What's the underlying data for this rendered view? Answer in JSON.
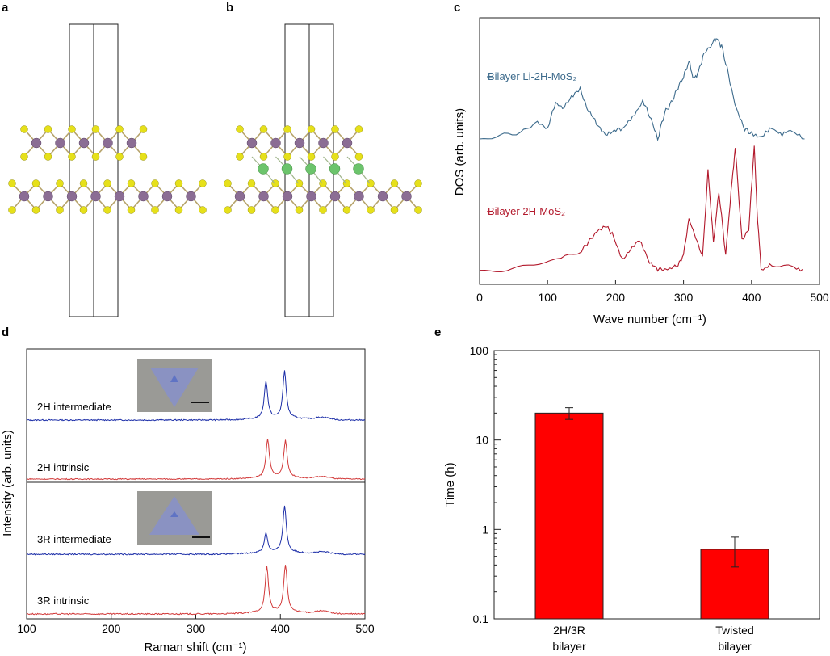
{
  "panel_labels": {
    "a": "a",
    "b": "b",
    "c": "c",
    "d": "d",
    "e": "e"
  },
  "colors": {
    "blue": "#3d6b8c",
    "dark_red": "#b2182b",
    "raman_blue": "#1c2ea8",
    "raman_red": "#d23a3a",
    "bar": "#ff0000",
    "mo_atom": "#8b6d94",
    "s_atom": "#e6e01a",
    "li_atom": "#6cc46c"
  },
  "chart_data": [
    {
      "panel": "c",
      "type": "line",
      "xlabel": "Wave number (cm⁻¹)",
      "ylabel": "DOS (arb. units)",
      "xlim": [
        0,
        500
      ],
      "xticks": [
        "0",
        "100",
        "200",
        "300",
        "400",
        "500"
      ],
      "series": [
        {
          "name": "Bilayer Li-2H-MoS₂",
          "x": [
            0,
            30,
            60,
            85,
            100,
            112,
            122,
            135,
            148,
            160,
            172,
            185,
            198,
            210,
            225,
            240,
            250,
            262,
            272,
            282,
            292,
            300,
            308,
            315,
            322,
            330,
            340,
            348,
            356,
            366,
            378,
            390,
            400,
            415,
            430,
            445,
            460,
            478
          ],
          "y": [
            0.0,
            0.1,
            0.3,
            0.6,
            0.4,
            1.4,
            1.2,
            1.6,
            1.9,
            1.1,
            0.6,
            0.2,
            0.3,
            0.4,
            0.8,
            1.5,
            0.9,
            0.0,
            1.0,
            1.4,
            2.0,
            2.4,
            3.0,
            2.3,
            2.6,
            3.3,
            3.6,
            3.9,
            3.6,
            2.5,
            1.1,
            0.4,
            0.2,
            0.1,
            0.4,
            0.2,
            0.3,
            0.0
          ]
        },
        {
          "name": "Bilayer 2H-MoS₂",
          "x": [
            0,
            40,
            80,
            120,
            150,
            170,
            185,
            195,
            210,
            222,
            235,
            250,
            262,
            280,
            292,
            300,
            308,
            318,
            328,
            336,
            344,
            352,
            362,
            370,
            376,
            386,
            396,
            404,
            408,
            414,
            430,
            460,
            475
          ],
          "y": [
            0.0,
            0.1,
            0.3,
            0.6,
            1.0,
            1.8,
            2.2,
            1.8,
            0.6,
            1.0,
            1.5,
            0.4,
            0.1,
            0.1,
            0.3,
            0.8,
            2.5,
            1.6,
            0.7,
            4.8,
            1.4,
            3.8,
            0.8,
            3.8,
            5.9,
            1.5,
            2.0,
            6.0,
            3.0,
            0.1,
            0.3,
            0.2,
            0.1
          ]
        }
      ]
    },
    {
      "panel": "d",
      "type": "line",
      "xlabel": "Raman shift (cm⁻¹)",
      "ylabel": "Intensity (arb. units)",
      "xlim": [
        100,
        500
      ],
      "xticks": [
        "100",
        "200",
        "300",
        "400",
        "500"
      ],
      "series": [
        {
          "name": "2H intermediate",
          "color": "blue",
          "peaks": [
            {
              "x": 383,
              "h": 0.62
            },
            {
              "x": 405,
              "h": 0.78
            }
          ],
          "baseline_tail": 0.08
        },
        {
          "name": "2H intrinsic",
          "color": "red",
          "peaks": [
            {
              "x": 385,
              "h": 0.75
            },
            {
              "x": 406,
              "h": 0.72
            }
          ],
          "baseline_tail": 0.08
        },
        {
          "name": "3R intermediate",
          "color": "blue",
          "peaks": [
            {
              "x": 383,
              "h": 0.3
            },
            {
              "x": 405,
              "h": 0.72
            }
          ],
          "baseline_tail": 0.06
        },
        {
          "name": "3R intrinsic",
          "color": "red",
          "peaks": [
            {
              "x": 384,
              "h": 0.72
            },
            {
              "x": 406,
              "h": 0.75
            }
          ],
          "baseline_tail": 0.08
        }
      ]
    },
    {
      "panel": "e",
      "type": "bar",
      "ylabel": "Time (h)",
      "yscale": "log",
      "ylim": [
        0.1,
        100
      ],
      "yticks": [
        "0.1",
        "1",
        "10",
        "100"
      ],
      "categories": [
        [
          "2H/3R",
          "bilayer"
        ],
        [
          "Twisted",
          "bilayer"
        ]
      ],
      "values": [
        20,
        0.6
      ],
      "error": [
        [
          17,
          23
        ],
        [
          0.38,
          0.82
        ]
      ]
    }
  ],
  "structure": {
    "a": {
      "description": "Bilayer 2H-MoS₂ side view"
    },
    "b": {
      "description": "Bilayer Li-2H-MoS₂ side view"
    }
  }
}
